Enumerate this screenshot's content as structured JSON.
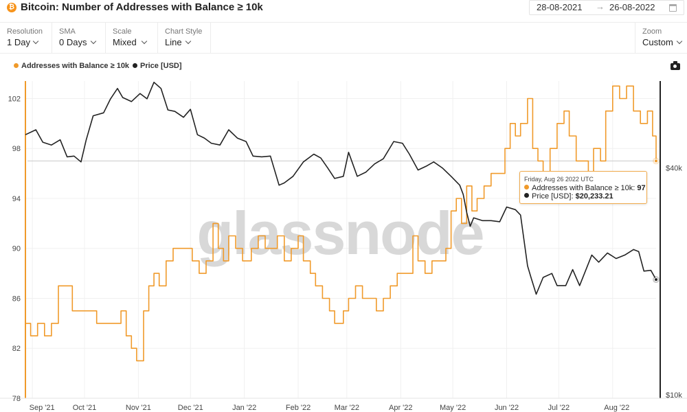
{
  "header": {
    "coin_icon": "bitcoin-icon",
    "coin_glyph": "₿",
    "title": "Bitcoin: Number of Addresses with Balance ≥ 10k",
    "date_from": "28-08-2021",
    "date_arrow": "→",
    "date_to": "26-08-2022",
    "calendar_icon": "calendar-icon"
  },
  "toolbar": {
    "resolution": {
      "label": "Resolution",
      "value": "1 Day"
    },
    "sma": {
      "label": "SMA",
      "value": "0 Days"
    },
    "scale": {
      "label": "Scale",
      "value": "Mixed"
    },
    "chart_style": {
      "label": "Chart Style",
      "value": "Line"
    },
    "zoom": {
      "label": "Zoom",
      "value": "Custom"
    }
  },
  "legend": {
    "addresses": "Addresses with Balance ≥ 10k",
    "price": "Price [USD]",
    "camera_icon": "camera-icon"
  },
  "watermark": "glassnode",
  "tooltip": {
    "date": "Friday, Aug 26 2022 UTC",
    "addresses_label": "Addresses with Balance ≥ 10k:",
    "addresses_value": "97",
    "price_label": "Price [USD]:",
    "price_value": "$20,233.21"
  },
  "colors": {
    "addresses": "#f09a2a",
    "price": "#222222",
    "grid": "#f0f0f0",
    "bitcoin": "#f7931a"
  },
  "chart_data": {
    "type": "line",
    "title": "Bitcoin: Number of Addresses with Balance ≥ 10k",
    "x_ticks": [
      "Sep '21",
      "Oct '21",
      "Nov '21",
      "Dec '21",
      "Jan '22",
      "Feb '22",
      "Mar '22",
      "Apr '22",
      "May '22",
      "Jun '22",
      "Jul '22",
      "Aug '22"
    ],
    "x_range": [
      "2021-08-28",
      "2022-08-26"
    ],
    "y_left": {
      "ticks": [
        78,
        82,
        86,
        90,
        94,
        98,
        102
      ],
      "range": [
        78,
        103.4
      ]
    },
    "y_right": {
      "scale": "log",
      "ticks": [
        "$10k",
        "$40k"
      ],
      "tick_values": [
        10000,
        40000
      ],
      "range": [
        9800,
        68000
      ]
    },
    "grid": true,
    "legend_position": "top-left",
    "series": [
      {
        "name": "Addresses with Balance ≥ 10k",
        "axis": "left",
        "color": "#f09a2a",
        "points": [
          [
            "2021-08-28",
            84
          ],
          [
            "2021-08-31",
            83
          ],
          [
            "2021-09-04",
            84
          ],
          [
            "2021-09-08",
            83
          ],
          [
            "2021-09-12",
            84
          ],
          [
            "2021-09-16",
            87
          ],
          [
            "2021-09-20",
            87
          ],
          [
            "2021-09-24",
            85
          ],
          [
            "2021-09-28",
            85
          ],
          [
            "2021-10-03",
            85
          ],
          [
            "2021-10-08",
            84
          ],
          [
            "2021-10-14",
            84
          ],
          [
            "2021-10-18",
            84
          ],
          [
            "2021-10-22",
            85
          ],
          [
            "2021-10-25",
            83
          ],
          [
            "2021-10-28",
            82
          ],
          [
            "2021-10-31",
            81
          ],
          [
            "2021-11-04",
            85
          ],
          [
            "2021-11-07",
            87
          ],
          [
            "2021-11-10",
            88
          ],
          [
            "2021-11-13",
            87
          ],
          [
            "2021-11-17",
            89
          ],
          [
            "2021-11-21",
            90
          ],
          [
            "2021-11-27",
            90
          ],
          [
            "2021-12-02",
            89
          ],
          [
            "2021-12-06",
            88
          ],
          [
            "2021-12-10",
            89
          ],
          [
            "2021-12-14",
            92
          ],
          [
            "2021-12-17",
            90
          ],
          [
            "2021-12-20",
            89
          ],
          [
            "2021-12-23",
            91
          ],
          [
            "2021-12-27",
            90
          ],
          [
            "2021-12-31",
            89
          ],
          [
            "2022-01-05",
            90
          ],
          [
            "2022-01-09",
            91
          ],
          [
            "2022-01-13",
            90
          ],
          [
            "2022-01-16",
            90
          ],
          [
            "2022-01-20",
            91
          ],
          [
            "2022-01-24",
            89
          ],
          [
            "2022-01-28",
            90
          ],
          [
            "2022-02-01",
            91
          ],
          [
            "2022-02-04",
            89
          ],
          [
            "2022-02-08",
            88
          ],
          [
            "2022-02-11",
            87
          ],
          [
            "2022-02-15",
            86
          ],
          [
            "2022-02-19",
            85
          ],
          [
            "2022-02-22",
            84
          ],
          [
            "2022-02-27",
            85
          ],
          [
            "2022-03-02",
            86
          ],
          [
            "2022-03-06",
            87
          ],
          [
            "2022-03-10",
            86
          ],
          [
            "2022-03-14",
            86
          ],
          [
            "2022-03-18",
            85
          ],
          [
            "2022-03-22",
            86
          ],
          [
            "2022-03-26",
            87
          ],
          [
            "2022-03-30",
            88
          ],
          [
            "2022-04-04",
            88
          ],
          [
            "2022-04-08",
            91
          ],
          [
            "2022-04-11",
            89
          ],
          [
            "2022-04-15",
            88
          ],
          [
            "2022-04-19",
            89
          ],
          [
            "2022-04-23",
            89
          ],
          [
            "2022-04-27",
            90
          ],
          [
            "2022-04-30",
            93
          ],
          [
            "2022-05-03",
            94
          ],
          [
            "2022-05-06",
            92
          ],
          [
            "2022-05-09",
            95
          ],
          [
            "2022-05-12",
            93
          ],
          [
            "2022-05-15",
            94
          ],
          [
            "2022-05-19",
            95
          ],
          [
            "2022-05-23",
            96
          ],
          [
            "2022-05-27",
            96
          ],
          [
            "2022-05-31",
            98
          ],
          [
            "2022-06-03",
            100
          ],
          [
            "2022-06-06",
            99
          ],
          [
            "2022-06-09",
            100
          ],
          [
            "2022-06-13",
            102
          ],
          [
            "2022-06-16",
            98
          ],
          [
            "2022-06-19",
            97
          ],
          [
            "2022-06-22",
            96
          ],
          [
            "2022-06-26",
            98
          ],
          [
            "2022-06-30",
            100
          ],
          [
            "2022-07-04",
            101
          ],
          [
            "2022-07-07",
            99
          ],
          [
            "2022-07-11",
            97
          ],
          [
            "2022-07-15",
            97
          ],
          [
            "2022-07-18",
            96
          ],
          [
            "2022-07-21",
            98
          ],
          [
            "2022-07-25",
            97
          ],
          [
            "2022-07-28",
            101
          ],
          [
            "2022-08-01",
            103
          ],
          [
            "2022-08-05",
            102
          ],
          [
            "2022-08-09",
            103
          ],
          [
            "2022-08-13",
            101
          ],
          [
            "2022-08-17",
            100
          ],
          [
            "2022-08-21",
            101
          ],
          [
            "2022-08-24",
            99
          ],
          [
            "2022-08-26",
            97
          ]
        ]
      },
      {
        "name": "Price [USD]",
        "axis": "right",
        "color": "#222222",
        "points": [
          [
            "2021-08-28",
            49000
          ],
          [
            "2021-09-03",
            50500
          ],
          [
            "2021-09-07",
            46800
          ],
          [
            "2021-09-12",
            46000
          ],
          [
            "2021-09-17",
            47500
          ],
          [
            "2021-09-21",
            42800
          ],
          [
            "2021-09-25",
            43000
          ],
          [
            "2021-09-29",
            41500
          ],
          [
            "2021-10-02",
            47500
          ],
          [
            "2021-10-06",
            55000
          ],
          [
            "2021-10-12",
            56000
          ],
          [
            "2021-10-16",
            61000
          ],
          [
            "2021-10-20",
            65000
          ],
          [
            "2021-10-23",
            61500
          ],
          [
            "2021-10-28",
            60000
          ],
          [
            "2021-11-02",
            63000
          ],
          [
            "2021-11-06",
            61000
          ],
          [
            "2021-11-10",
            67500
          ],
          [
            "2021-11-14",
            65000
          ],
          [
            "2021-11-18",
            57000
          ],
          [
            "2021-11-22",
            56500
          ],
          [
            "2021-11-27",
            54500
          ],
          [
            "2021-12-01",
            57200
          ],
          [
            "2021-12-05",
            49000
          ],
          [
            "2021-12-09",
            48000
          ],
          [
            "2021-12-13",
            46500
          ],
          [
            "2021-12-18",
            46000
          ],
          [
            "2021-12-23",
            50500
          ],
          [
            "2021-12-28",
            48000
          ],
          [
            "2022-01-02",
            47000
          ],
          [
            "2022-01-06",
            43000
          ],
          [
            "2022-01-11",
            42800
          ],
          [
            "2022-01-16",
            43000
          ],
          [
            "2022-01-21",
            36000
          ],
          [
            "2022-01-24",
            36500
          ],
          [
            "2022-01-29",
            38000
          ],
          [
            "2022-02-04",
            41500
          ],
          [
            "2022-02-10",
            43500
          ],
          [
            "2022-02-14",
            42500
          ],
          [
            "2022-02-18",
            40000
          ],
          [
            "2022-02-22",
            37500
          ],
          [
            "2022-02-27",
            38000
          ],
          [
            "2022-03-02",
            44000
          ],
          [
            "2022-03-07",
            38000
          ],
          [
            "2022-03-12",
            39000
          ],
          [
            "2022-03-17",
            41000
          ],
          [
            "2022-03-22",
            42300
          ],
          [
            "2022-03-28",
            47000
          ],
          [
            "2022-04-02",
            46500
          ],
          [
            "2022-04-06",
            43500
          ],
          [
            "2022-04-11",
            39500
          ],
          [
            "2022-04-16",
            40500
          ],
          [
            "2022-04-20",
            41500
          ],
          [
            "2022-04-25",
            40000
          ],
          [
            "2022-04-30",
            38000
          ],
          [
            "2022-05-05",
            36000
          ],
          [
            "2022-05-07",
            34000
          ],
          [
            "2022-05-09",
            30500
          ],
          [
            "2022-05-11",
            28000
          ],
          [
            "2022-05-13",
            29500
          ],
          [
            "2022-05-18",
            29000
          ],
          [
            "2022-05-23",
            29000
          ],
          [
            "2022-05-28",
            28800
          ],
          [
            "2022-06-01",
            31500
          ],
          [
            "2022-06-06",
            31000
          ],
          [
            "2022-06-09",
            30000
          ],
          [
            "2022-06-13",
            22000
          ],
          [
            "2022-06-15",
            20500
          ],
          [
            "2022-06-18",
            18500
          ],
          [
            "2022-06-22",
            20500
          ],
          [
            "2022-06-27",
            21000
          ],
          [
            "2022-06-30",
            19500
          ],
          [
            "2022-07-05",
            19500
          ],
          [
            "2022-07-09",
            21500
          ],
          [
            "2022-07-13",
            19500
          ],
          [
            "2022-07-20",
            23500
          ],
          [
            "2022-07-24",
            22500
          ],
          [
            "2022-07-29",
            23800
          ],
          [
            "2022-08-03",
            23000
          ],
          [
            "2022-08-08",
            23500
          ],
          [
            "2022-08-13",
            24300
          ],
          [
            "2022-08-16",
            24000
          ],
          [
            "2022-08-19",
            21300
          ],
          [
            "2022-08-23",
            21400
          ],
          [
            "2022-08-26",
            20233
          ]
        ]
      }
    ]
  }
}
